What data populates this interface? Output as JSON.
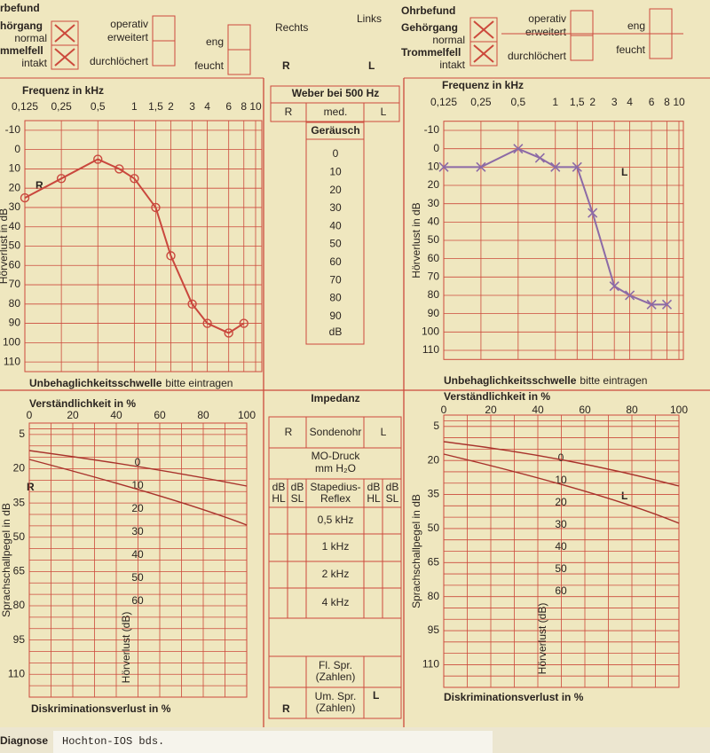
{
  "header": {
    "left": {
      "title": "rbefund",
      "canal": "hörgang",
      "canal_state": "normal",
      "drum": "mmelfell",
      "drum_state": "intakt",
      "canal_checked": true,
      "drum_checked": true,
      "operated": "operativ",
      "widened": "erweitert",
      "perforated": "durchlöchert",
      "narrow": "eng",
      "moist": "feucht"
    },
    "rechts": "Rechts",
    "links": "Links",
    "right": {
      "title": "Ohrbefund",
      "canal": "Gehörgang",
      "canal_state": "normal",
      "drum": "Trommelfell",
      "drum_state": "intakt",
      "canal_checked": true,
      "drum_checked": true,
      "operated": "operativ",
      "widened": "erweitert",
      "perforated": "durchlöchert",
      "narrow": "eng",
      "moist": "feucht"
    }
  },
  "weber": {
    "title": "Weber bei 500 Hz",
    "cells": [
      "R",
      "med.",
      "L"
    ]
  },
  "noise": {
    "title": "Geräusch",
    "ticks": [
      0,
      10,
      20,
      30,
      40,
      50,
      60,
      70,
      80,
      90
    ],
    "unit": "dB"
  },
  "impedance": {
    "title": "Impedanz",
    "ear_row": [
      "R",
      "Sondenohr",
      "L"
    ],
    "pressure": [
      "MO-Druck",
      "mm H₂O"
    ],
    "reflex_head": [
      [
        "dB",
        "HL"
      ],
      [
        "dB",
        "SL"
      ],
      [
        "Stapedius-",
        "Reflex"
      ],
      [
        "dB",
        "HL"
      ],
      [
        "dB",
        "SL"
      ]
    ],
    "freqs": [
      "0,5 kHz",
      "1 kHz",
      "2 kHz",
      "4 kHz"
    ],
    "speech": [
      [
        "Fl. Spr.",
        "(Zahlen)"
      ],
      [
        "Um. Spr.",
        "(Zahlen)"
      ]
    ]
  },
  "letters": [
    "R",
    "L",
    "R",
    "L",
    "R",
    "L",
    "R",
    "L"
  ],
  "chart_data": [
    {
      "type": "line",
      "title": "Frequenz in kHz",
      "x_log": true,
      "xlim": [
        0.125,
        10
      ],
      "xticks": [
        {
          "value": 0.125,
          "label": "0,125"
        },
        {
          "value": 0.25,
          "label": "0,25"
        },
        {
          "value": 0.5,
          "label": "0,5"
        },
        1,
        {
          "value": 1.5,
          "label": "1,5"
        },
        2,
        3,
        4,
        6,
        8,
        10
      ],
      "ylim": [
        -15,
        115
      ],
      "y_inverted": true,
      "yticks": [
        -10,
        0,
        10,
        20,
        30,
        40,
        50,
        60,
        70,
        80,
        90,
        100,
        110
      ],
      "ylabel": "Hörverlust in dB",
      "note_bold": "Unbehaglichkeitsschwelle",
      "note": "bitte eintragen",
      "grid": true,
      "series": [
        {
          "color": "#c9473d",
          "marker": "circle",
          "x": [
            0.125,
            0.25,
            0.5,
            0.75,
            1,
            1.5,
            2,
            3,
            4,
            6,
            8
          ],
          "values": [
            25,
            15,
            5,
            10,
            15,
            30,
            55,
            80,
            90,
            95,
            90
          ]
        }
      ]
    },
    {
      "type": "line",
      "title": "Frequenz in kHz",
      "x_log": true,
      "xlim": [
        0.125,
        10
      ],
      "xticks": [
        {
          "value": 0.125,
          "label": "0,125"
        },
        {
          "value": 0.25,
          "label": "0,25"
        },
        {
          "value": 0.5,
          "label": "0,5"
        },
        1,
        {
          "value": 1.5,
          "label": "1,5"
        },
        2,
        3,
        4,
        6,
        8,
        10
      ],
      "ylim": [
        -15,
        115
      ],
      "y_inverted": true,
      "yticks": [
        -10,
        0,
        10,
        20,
        30,
        40,
        50,
        60,
        70,
        80,
        90,
        100,
        110
      ],
      "ylabel": "Hörverlust in dB",
      "note_bold": "Unbehaglichkeitsschwelle",
      "note": "bitte eintragen",
      "grid": true,
      "series": [
        {
          "color": "#8c6aa6",
          "marker": "cross",
          "x": [
            0.125,
            0.25,
            0.5,
            0.75,
            1,
            1.5,
            2,
            3,
            4,
            6,
            8
          ],
          "values": [
            10,
            10,
            0,
            5,
            10,
            10,
            35,
            75,
            80,
            85,
            85
          ]
        }
      ]
    },
    {
      "type": "line",
      "title": "Verständlichkeit in %",
      "xlim": [
        0,
        100
      ],
      "xticks": [
        0,
        20,
        40,
        60,
        80,
        100
      ],
      "ylim": [
        0,
        120
      ],
      "y_inverted": true,
      "yticks": [
        5,
        20,
        35,
        50,
        65,
        80,
        95,
        110
      ],
      "ylabel": "Sprachschallpegel in dB",
      "xlabel": "Diskriminationsverlust in %",
      "grid": true,
      "inner_scale": {
        "label": "Hörverlust (dB)",
        "ticks": [
          0,
          10,
          20,
          30,
          40,
          50,
          60
        ]
      },
      "series": []
    },
    {
      "type": "line",
      "title": "Verständlichkeit in %",
      "xlim": [
        0,
        100
      ],
      "xticks": [
        0,
        20,
        40,
        60,
        80,
        100
      ],
      "ylim": [
        0,
        120
      ],
      "y_inverted": true,
      "yticks": [
        5,
        20,
        35,
        50,
        65,
        80,
        95,
        110
      ],
      "ylabel": "Sprachschallpegel in dB",
      "xlabel": "Diskriminationsverlust in %",
      "grid": true,
      "inner_scale": {
        "label": "Hörverlust (dB)",
        "ticks": [
          0,
          10,
          20,
          30,
          40,
          50,
          60
        ]
      },
      "series": []
    }
  ],
  "diagnosis": {
    "label": "Diagnose",
    "text": "Hochton-IOS bds."
  }
}
